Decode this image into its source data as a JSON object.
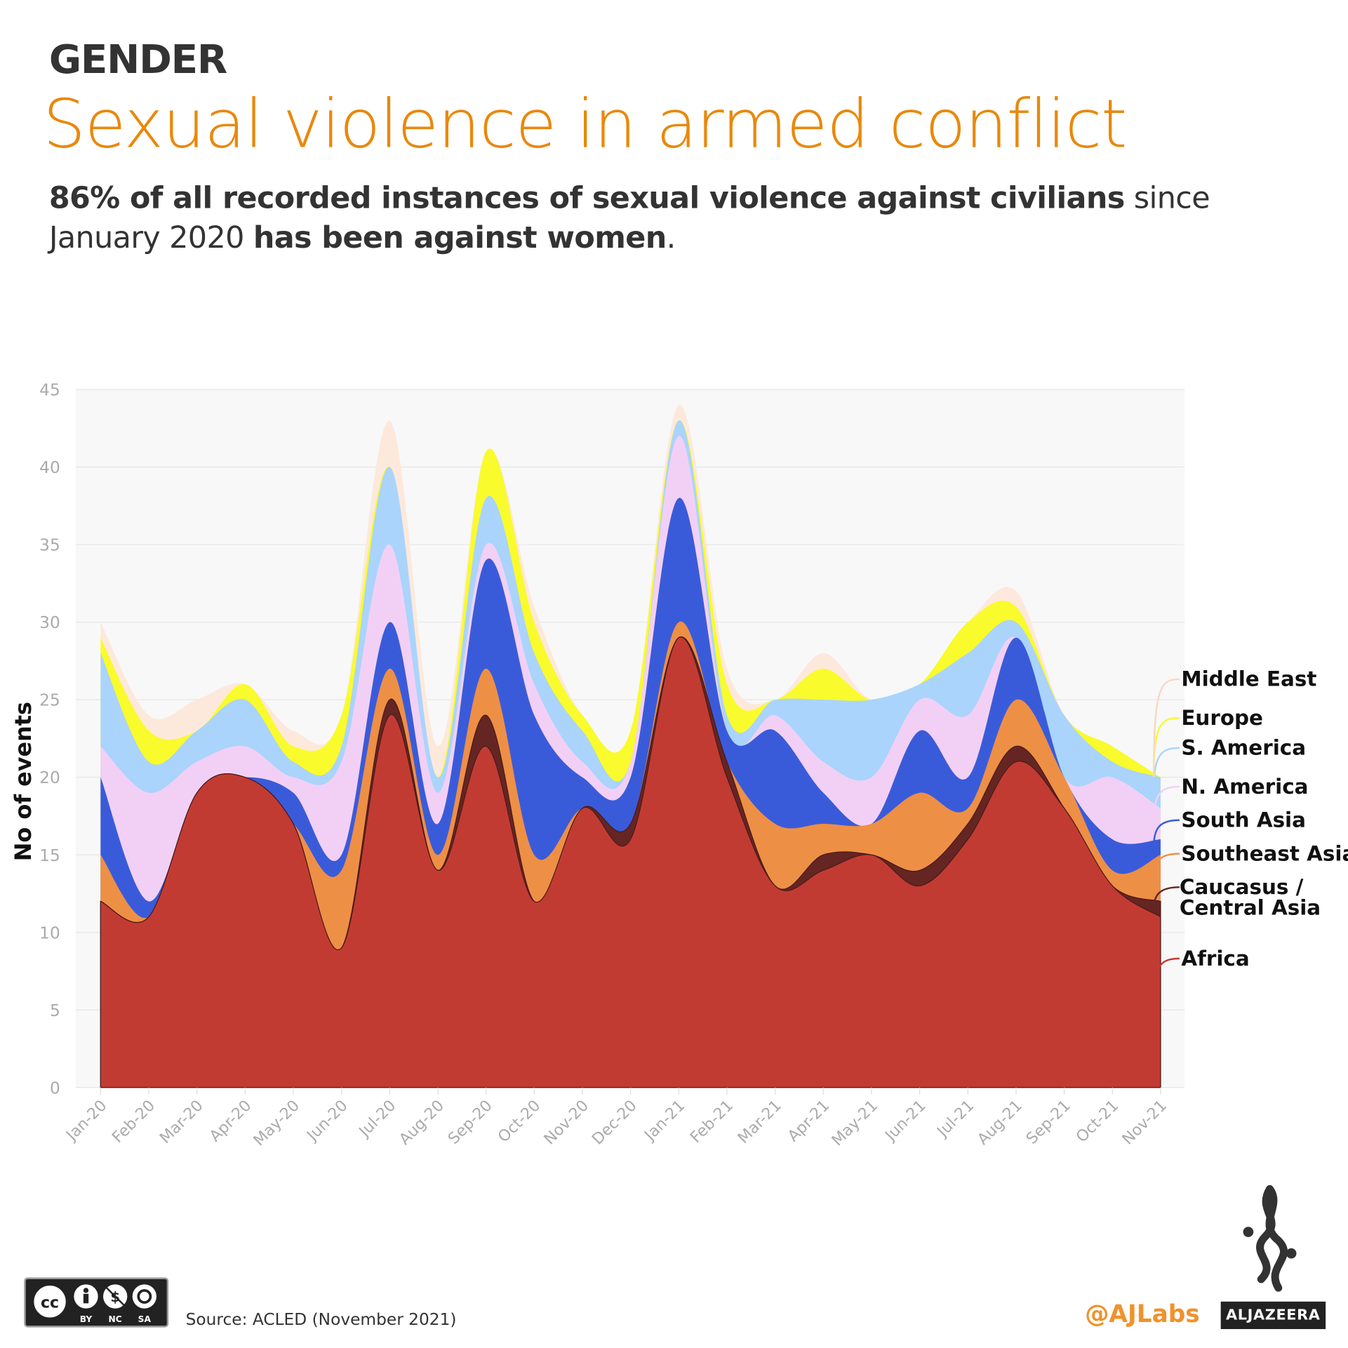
{
  "header": {
    "kicker": "GENDER",
    "title": "Sexual violence in armed conflict",
    "subtitle_parts": [
      {
        "text": "86% of all recorded instances of sexual violence against civilians",
        "bold": true
      },
      {
        "text": " since January 2020 ",
        "bold": false
      },
      {
        "text": "has been against women",
        "bold": true
      },
      {
        "text": ".",
        "bold": false
      }
    ]
  },
  "footer": {
    "source": "Source: ACLED (November 2021)",
    "handle": "@AJLabs",
    "brand": "ALJAZEERA",
    "license": "CC BY NC SA"
  },
  "chart_data": {
    "type": "area",
    "stacked": true,
    "smoothed": true,
    "ylabel": "No of events",
    "xlabel": "",
    "ylim": [
      0,
      45
    ],
    "yticks": [
      0,
      5,
      10,
      15,
      20,
      25,
      30,
      35,
      40,
      45
    ],
    "grid": true,
    "legend_placement": "right (inline labels)",
    "categories": [
      "Jan-20",
      "Feb-20",
      "Mar-20",
      "Apr-20",
      "May-20",
      "Jun-20",
      "Jul-20",
      "Aug-20",
      "Sep-20",
      "Oct-20",
      "Nov-20",
      "Dec-20",
      "Jan-21",
      "Feb-21",
      "Mar-21",
      "Apr-21",
      "May-21",
      "Jun-21",
      "Jul-21",
      "Aug-21",
      "Sep-21",
      "Oct-21",
      "Nov-21"
    ],
    "series": [
      {
        "name": "Africa",
        "color": "#c23b32",
        "values": [
          12,
          11,
          19,
          20,
          17,
          9,
          24,
          14,
          22,
          12,
          18,
          16,
          29,
          20,
          13,
          14,
          15,
          13,
          16,
          21,
          18,
          13,
          11
        ]
      },
      {
        "name": "Caucasus / Central Asia",
        "color": "#652523",
        "values": [
          0,
          0,
          0,
          0,
          0,
          0,
          1,
          0,
          2,
          0,
          0,
          1,
          0,
          1,
          0,
          1,
          0,
          1,
          1,
          1,
          0,
          0,
          1
        ]
      },
      {
        "name": "Southeast Asia",
        "color": "#ee8f46",
        "values": [
          3,
          0,
          0,
          0,
          0,
          5,
          2,
          1,
          3,
          3,
          0,
          0,
          1,
          0,
          4,
          2,
          2,
          5,
          1,
          3,
          2,
          1,
          3
        ]
      },
      {
        "name": "South Asia",
        "color": "#3a5bd9",
        "values": [
          5,
          1,
          0,
          0,
          2,
          1,
          3,
          2,
          7,
          9,
          2,
          3,
          8,
          2,
          6,
          2,
          0,
          4,
          2,
          4,
          0,
          2,
          1
        ]
      },
      {
        "name": "N. America",
        "color": "#f2d0f5",
        "values": [
          2,
          7,
          2,
          2,
          1,
          6,
          5,
          2,
          1,
          2,
          1,
          1,
          4,
          0,
          1,
          2,
          3,
          2,
          4,
          0,
          0,
          4,
          2
        ]
      },
      {
        "name": "S. America",
        "color": "#aad4fc",
        "values": [
          6,
          2,
          2,
          3,
          1,
          1,
          5,
          1,
          3,
          2,
          2,
          0,
          1,
          1,
          1,
          4,
          5,
          1,
          4,
          1,
          4,
          1,
          2
        ]
      },
      {
        "name": "Europe",
        "color": "#f9fb2c",
        "values": [
          1,
          2,
          0,
          1,
          1,
          2,
          0,
          0,
          3,
          2,
          1,
          2,
          0,
          2,
          0,
          2,
          0,
          0,
          2,
          1,
          0,
          1,
          0
        ]
      },
      {
        "name": "Middle East",
        "color": "#fde9dc",
        "values": [
          1,
          1,
          2,
          0,
          1,
          0,
          3,
          2,
          0,
          1,
          0,
          0,
          1,
          1,
          0,
          1,
          0,
          0,
          0,
          1,
          0,
          0,
          0
        ]
      }
    ]
  }
}
